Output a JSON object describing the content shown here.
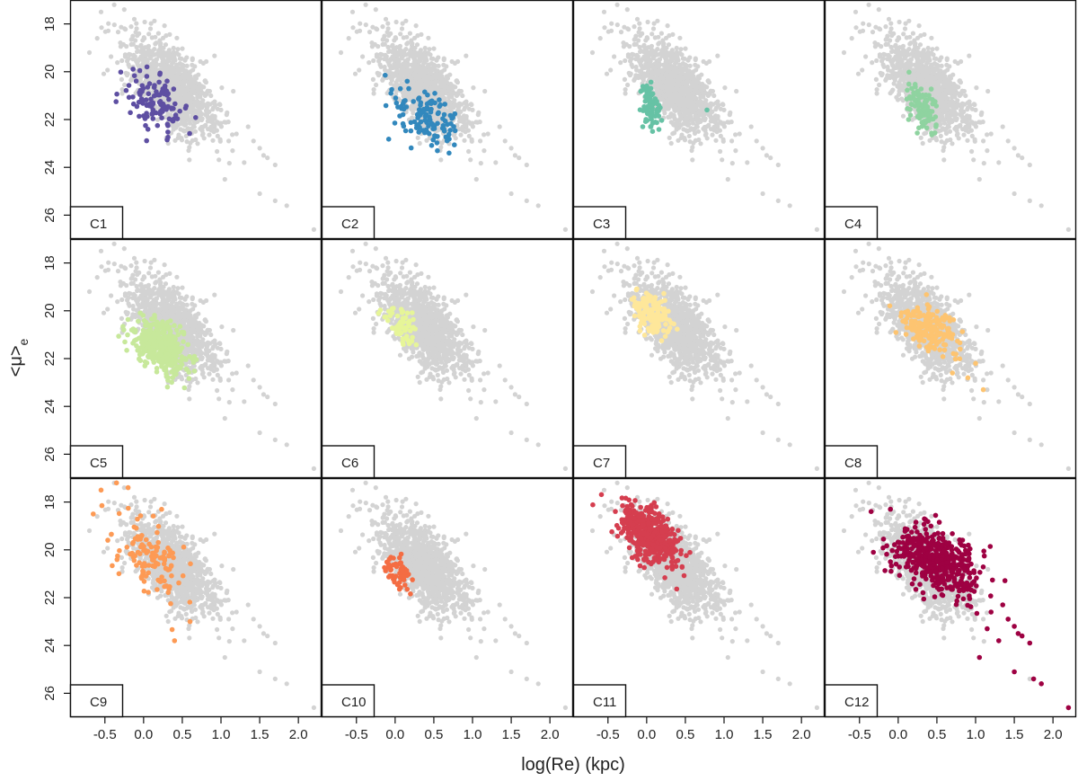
{
  "chart_data": {
    "type": "scatter",
    "layout": "3x4 small multiples",
    "xlabel": "log(Re) (kpc)",
    "ylabel_main": "<μ>",
    "ylabel_sub": "e",
    "xlim": [
      -0.95,
      2.3
    ],
    "ylim": [
      17.0,
      27.0
    ],
    "y_inverted": true,
    "x_ticks": [
      "-0.5",
      "0.0",
      "0.5",
      "1.0",
      "1.5",
      "2.0"
    ],
    "x_tick_values": [
      -0.5,
      0.0,
      0.5,
      1.0,
      1.5,
      2.0
    ],
    "y_ticks": [
      "18",
      "20",
      "22",
      "24",
      "26"
    ],
    "y_tick_values": [
      18,
      20,
      22,
      24,
      26
    ],
    "background_color": "#d3d3d3",
    "background_description": "all galaxies (grey) shown in every panel",
    "background": {
      "blob_center": [
        0.35,
        20.6
      ],
      "blob_spread": [
        0.28,
        1.05
      ],
      "blob_count": 1100,
      "outliers": [
        [
          -0.55,
          17.5
        ],
        [
          -0.38,
          17.2
        ],
        [
          -0.25,
          17.4
        ],
        [
          -0.12,
          17.8
        ],
        [
          -0.6,
          18.6
        ],
        [
          -0.7,
          19.2
        ],
        [
          0.75,
          20.6
        ],
        [
          0.9,
          21.3
        ],
        [
          1.0,
          21.6
        ],
        [
          1.2,
          22.6
        ],
        [
          1.35,
          22.3
        ],
        [
          1.42,
          22.9
        ],
        [
          1.5,
          23.2
        ],
        [
          1.55,
          23.5
        ],
        [
          1.6,
          23.6
        ],
        [
          1.7,
          23.9
        ],
        [
          1.3,
          23.8
        ],
        [
          1.05,
          24.5
        ],
        [
          1.15,
          23.3
        ],
        [
          1.5,
          25.1
        ],
        [
          1.7,
          25.4
        ],
        [
          1.85,
          25.6
        ],
        [
          2.2,
          26.6
        ],
        [
          0.95,
          22.1
        ],
        [
          1.1,
          22.9
        ]
      ]
    },
    "panels": [
      {
        "label": "C1",
        "color": "#5e4fa2",
        "center": [
          0.15,
          21.3
        ],
        "spread": [
          0.2,
          0.65
        ],
        "count": 110
      },
      {
        "label": "C2",
        "color": "#3288bd",
        "center": [
          0.38,
          21.9
        ],
        "spread": [
          0.2,
          0.6
        ],
        "count": 120
      },
      {
        "label": "C3",
        "color": "#66c2a5",
        "center": [
          0.05,
          21.3
        ],
        "spread": [
          0.06,
          0.45
        ],
        "count": 75,
        "extra": [
          [
            0.78,
            21.6
          ],
          [
            -0.05,
            22.3
          ],
          [
            0.05,
            22.3
          ]
        ]
      },
      {
        "label": "C4",
        "color": "#8fd3a0",
        "center": [
          0.32,
          21.6
        ],
        "spread": [
          0.1,
          0.5
        ],
        "count": 95
      },
      {
        "label": "C5",
        "color": "#c7e89b",
        "center": [
          0.2,
          21.5
        ],
        "spread": [
          0.18,
          0.6
        ],
        "count": 420
      },
      {
        "label": "C6",
        "color": "#e6f598",
        "center": [
          0.08,
          20.6
        ],
        "spread": [
          0.1,
          0.4
        ],
        "count": 60
      },
      {
        "label": "C7",
        "color": "#fee79a",
        "center": [
          0.08,
          20.1
        ],
        "spread": [
          0.12,
          0.45
        ],
        "count": 150
      },
      {
        "label": "C8",
        "color": "#fdc471",
        "center": [
          0.4,
          20.8
        ],
        "spread": [
          0.18,
          0.5
        ],
        "count": 170,
        "extra": [
          [
            0.8,
            21.6
          ],
          [
            1.0,
            22.2
          ],
          [
            0.7,
            22.6
          ],
          [
            1.1,
            23.3
          ],
          [
            0.9,
            22.8
          ]
        ]
      },
      {
        "label": "C9",
        "color": "#fd9a55",
        "center": [
          0.1,
          20.4
        ],
        "spread": [
          0.22,
          0.9
        ],
        "count": 120,
        "extra": [
          [
            -0.55,
            17.5
          ],
          [
            -0.35,
            17.2
          ],
          [
            -0.2,
            17.4
          ],
          [
            -0.65,
            18.5
          ],
          [
            0.4,
            23.8
          ],
          [
            0.6,
            23.0
          ]
        ]
      },
      {
        "label": "C10",
        "color": "#f46d43",
        "center": [
          0.05,
          20.9
        ],
        "spread": [
          0.09,
          0.45
        ],
        "count": 55
      },
      {
        "label": "C11",
        "color": "#d53e4f",
        "center": [
          0.05,
          19.4
        ],
        "spread": [
          0.18,
          0.6
        ],
        "count": 420
      },
      {
        "label": "C12",
        "color": "#9e0142",
        "center": [
          0.5,
          20.5
        ],
        "spread": [
          0.28,
          0.7
        ],
        "count": 480,
        "extra": [
          [
            1.2,
            22.6
          ],
          [
            1.35,
            22.3
          ],
          [
            1.42,
            22.9
          ],
          [
            1.5,
            23.2
          ],
          [
            1.55,
            23.5
          ],
          [
            1.6,
            23.6
          ],
          [
            1.7,
            23.9
          ],
          [
            1.3,
            23.8
          ],
          [
            1.05,
            24.5
          ],
          [
            1.15,
            23.3
          ],
          [
            1.5,
            25.1
          ],
          [
            1.75,
            25.4
          ],
          [
            1.85,
            25.6
          ],
          [
            2.2,
            26.6
          ],
          [
            -0.35,
            18.4
          ],
          [
            -0.1,
            18.3
          ]
        ]
      }
    ]
  }
}
